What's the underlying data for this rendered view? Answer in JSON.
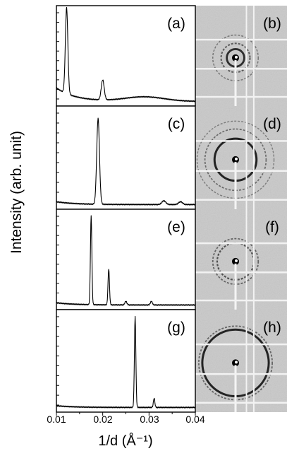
{
  "chart_data": {
    "type": "line",
    "ylabel": "Intensity (arb. unit)",
    "xlabel": "1/d (Å⁻¹)",
    "xlim": [
      0.01,
      0.04
    ],
    "xticks": [
      "0.01",
      "0.02",
      "0.03",
      "0.04"
    ],
    "panels": [
      {
        "label": "(a)",
        "image_label": "(b)",
        "baseline": 0.15,
        "peaks": [
          {
            "x": 0.0122,
            "height": 0.95,
            "width": 0.00038
          },
          {
            "x": 0.02,
            "height": 0.22,
            "width": 0.00045
          },
          {
            "x": 0.029,
            "height": 0.05,
            "width": 0.006
          }
        ],
        "ring_radii": [
          0.2,
          0.33,
          0.52
        ],
        "ring_strength": [
          0.9,
          0.5,
          0.25
        ]
      },
      {
        "label": "(c)",
        "image_label": "(d)",
        "baseline": 0.05,
        "peaks": [
          {
            "x": 0.019,
            "height": 0.92,
            "width": 0.00042
          },
          {
            "x": 0.0332,
            "height": 0.04,
            "width": 0.0006
          },
          {
            "x": 0.0368,
            "height": 0.03,
            "width": 0.0006
          }
        ],
        "ring_radii": [
          0.48,
          0.7,
          0.88
        ],
        "ring_strength": [
          1.0,
          0.35,
          0.2
        ]
      },
      {
        "label": "(e)",
        "image_label": "(f)",
        "baseline": 0.04,
        "peaks": [
          {
            "x": 0.0175,
            "height": 0.98,
            "width": 0.00022
          },
          {
            "x": 0.0213,
            "height": 0.4,
            "width": 0.00022
          },
          {
            "x": 0.025,
            "height": 0.04,
            "width": 0.0003
          },
          {
            "x": 0.0305,
            "height": 0.04,
            "width": 0.0003
          }
        ],
        "ring_radii": [
          0.42,
          0.52
        ],
        "ring_strength": [
          0.6,
          0.4
        ]
      },
      {
        "label": "(g)",
        "image_label": "(h)",
        "baseline": 0.03,
        "peaks": [
          {
            "x": 0.027,
            "height": 0.98,
            "width": 0.00022
          },
          {
            "x": 0.0311,
            "height": 0.1,
            "width": 0.00022
          }
        ],
        "ring_radii": [
          0.76,
          0.84
        ],
        "ring_strength": [
          1.0,
          0.4
        ]
      }
    ]
  }
}
